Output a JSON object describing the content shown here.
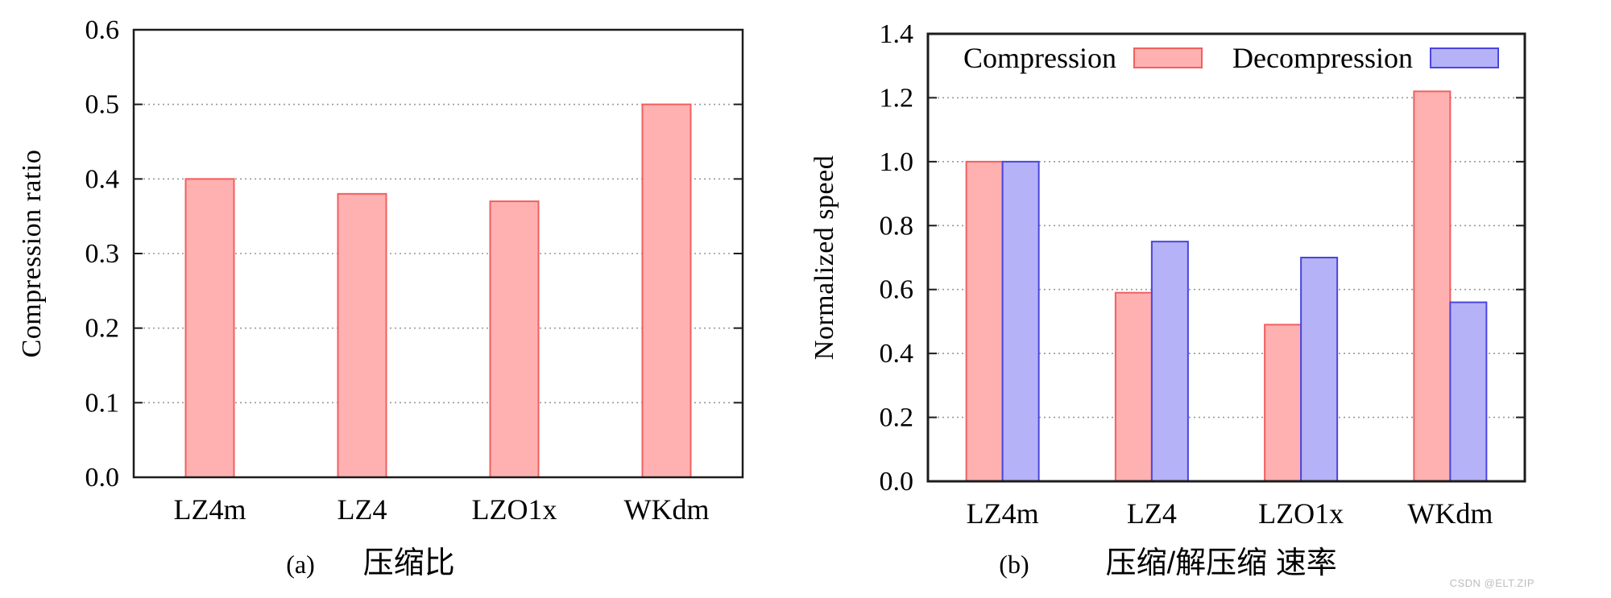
{
  "page": {
    "background": "#ffffff",
    "watermark": "CSDN @ELT.ZIP"
  },
  "colors": {
    "compression_fill": "#FFB1B1",
    "compression_stroke": "#F15F5F",
    "decompression_fill": "#B5B2F8",
    "decompression_stroke": "#4B45DF",
    "frame": "#1C1C1C",
    "grid": "#999999",
    "text": "#000000",
    "watermark": "#BDBDBD"
  },
  "chart_data": [
    {
      "id": "compression-ratio",
      "type": "bar",
      "caption_index": "(a)",
      "caption_text": "压缩比",
      "xlabel": "",
      "ylabel": "Compression ratio",
      "categories": [
        "LZ4m",
        "LZ4",
        "LZO1x",
        "WKdm"
      ],
      "values": [
        0.4,
        0.38,
        0.37,
        0.5
      ],
      "series_color": "compression",
      "ylim": [
        0.0,
        0.6
      ],
      "ytick_step": 0.1,
      "ytick_labels": [
        "0.0",
        "0.1",
        "0.2",
        "0.3",
        "0.4",
        "0.5",
        "0.6"
      ],
      "grid": "horizontal-dotted",
      "legend": "none"
    },
    {
      "id": "normalized-speed",
      "type": "bar",
      "caption_index": "(b)",
      "caption_text": "压缩/解压缩 速率",
      "xlabel": "",
      "ylabel": "Normalized speed",
      "categories": [
        "LZ4m",
        "LZ4",
        "LZO1x",
        "WKdm"
      ],
      "series": [
        {
          "name": "Compression",
          "color": "compression",
          "values": [
            1.0,
            0.59,
            0.49,
            1.22
          ]
        },
        {
          "name": "Decompression",
          "color": "decompression",
          "values": [
            1.0,
            0.75,
            0.7,
            0.56
          ]
        }
      ],
      "ylim": [
        0.0,
        1.4
      ],
      "ytick_step": 0.2,
      "ytick_labels": [
        "0.0",
        "0.2",
        "0.4",
        "0.6",
        "0.8",
        "1.0",
        "1.2",
        "1.4"
      ],
      "grid": "horizontal-dotted",
      "legend": "top-inside"
    }
  ]
}
